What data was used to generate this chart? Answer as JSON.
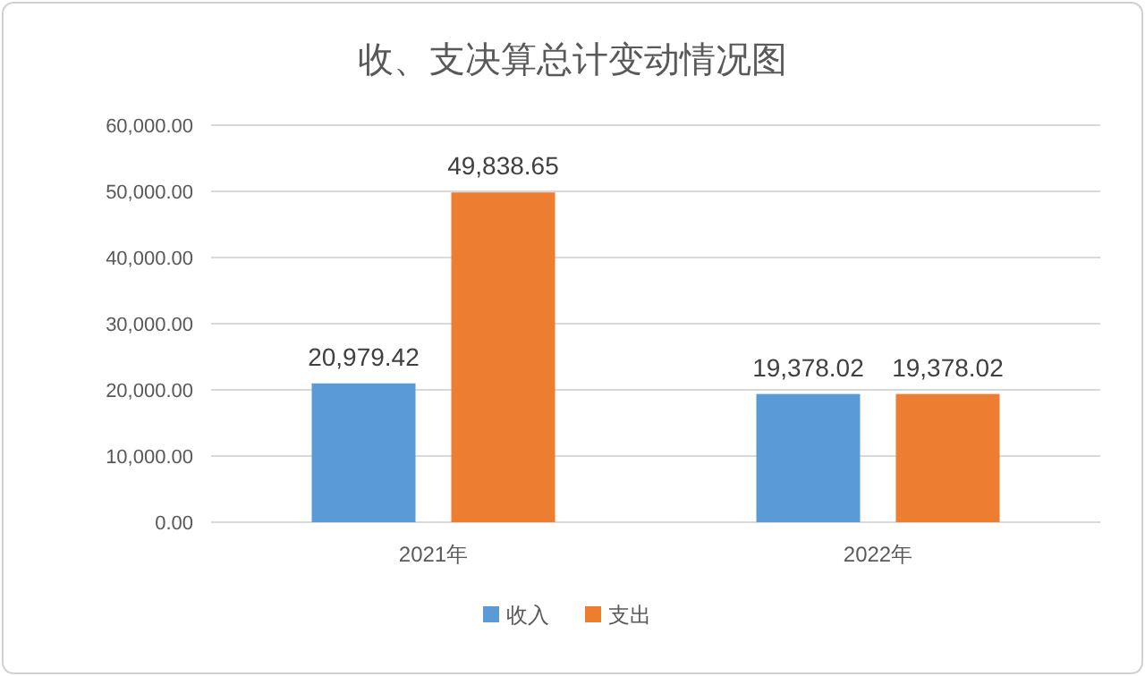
{
  "chart_data": {
    "type": "bar",
    "title": "收、支决算总计变动情况图",
    "categories": [
      "2021年",
      "2022年"
    ],
    "series": [
      {
        "name": "收入",
        "color": "#5b9bd5",
        "values": [
          20979.42,
          19378.02
        ],
        "value_labels": [
          "20,979.42",
          "19,378.02"
        ]
      },
      {
        "name": "支出",
        "color": "#ed7d31",
        "values": [
          49838.65,
          19378.02
        ],
        "value_labels": [
          "49,838.65",
          "19,378.02"
        ]
      }
    ],
    "ylim": [
      0,
      60000
    ],
    "yticks": [
      {
        "value": 0,
        "label": "0.00"
      },
      {
        "value": 10000,
        "label": "10,000.00"
      },
      {
        "value": 20000,
        "label": "20,000.00"
      },
      {
        "value": 30000,
        "label": "30,000.00"
      },
      {
        "value": 40000,
        "label": "40,000.00"
      },
      {
        "value": 50000,
        "label": "50,000.00"
      },
      {
        "value": 60000,
        "label": "60,000.00"
      }
    ],
    "grid": "y",
    "legend": "bottom"
  }
}
